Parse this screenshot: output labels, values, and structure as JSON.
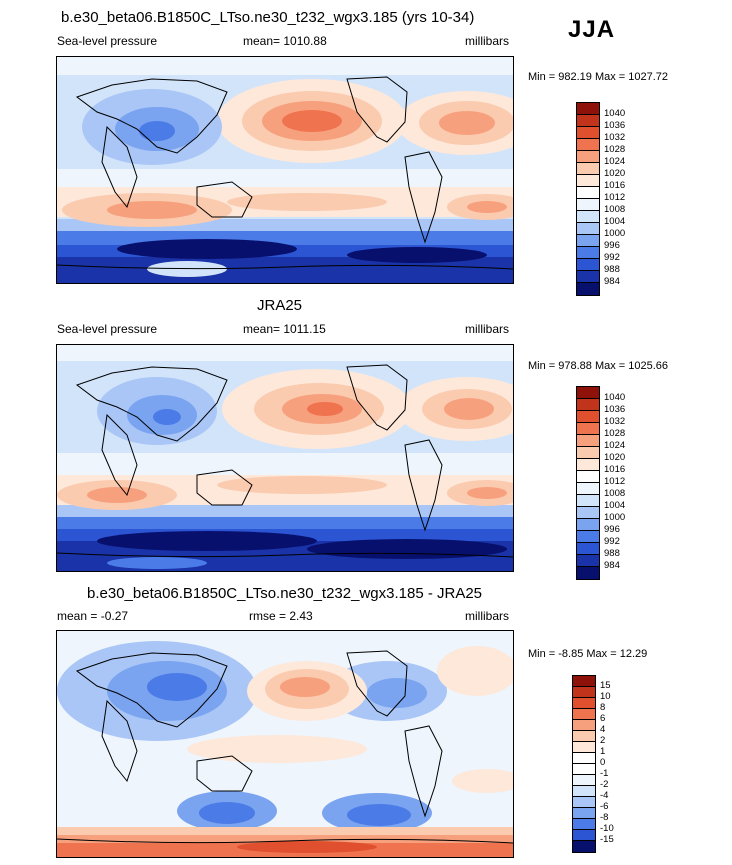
{
  "season": "JJA",
  "colors": {
    "slp": [
      "#08106e",
      "#1a33a8",
      "#2c55d4",
      "#4b7be6",
      "#7aa3f0",
      "#a9c6f6",
      "#d2e4fa",
      "#eef5fd",
      "#fde8da",
      "#fbcbb0",
      "#f7a07e",
      "#f0734f",
      "#e0502e",
      "#c2331c",
      "#8e1209"
    ],
    "diff": [
      "#08106e",
      "#1a33a8",
      "#2c55d4",
      "#4b7be6",
      "#7aa3f0",
      "#a9c6f6",
      "#d2e4fa",
      "#eef5fd",
      "#ffffff",
      "#fde8da",
      "#fbcbb0",
      "#f7a07e",
      "#f0734f",
      "#e0502e",
      "#c2331c",
      "#8e1209"
    ]
  },
  "chart_data": [
    {
      "type": "heatmap",
      "title": "b.e30_beta06.B1850C_LTso.ne30_t232_wgx3.185 (yrs 10-34)",
      "left_label": "Sea-level pressure",
      "center_label": "mean= 1010.88",
      "right_label": "millibars",
      "minmax": "Min = 982.19 Max = 1027.72",
      "mean": 1010.88,
      "min": 982.19,
      "max": 1027.72,
      "colorbar_labels": [
        "1040",
        "1036",
        "1032",
        "1028",
        "1024",
        "1020",
        "1016",
        "1012",
        "1008",
        "1004",
        "1000",
        "996",
        "992",
        "988",
        "984"
      ]
    },
    {
      "type": "heatmap",
      "title": "JRA25",
      "left_label": "Sea-level pressure",
      "center_label": "mean= 1011.15",
      "right_label": "millibars",
      "minmax": "Min = 978.88 Max = 1025.66",
      "mean": 1011.15,
      "min": 978.88,
      "max": 1025.66,
      "colorbar_labels": [
        "1040",
        "1036",
        "1032",
        "1028",
        "1024",
        "1020",
        "1016",
        "1012",
        "1008",
        "1004",
        "1000",
        "996",
        "992",
        "988",
        "984"
      ]
    },
    {
      "type": "heatmap",
      "title": "b.e30_beta06.B1850C_LTso.ne30_t232_wgx3.185 - JRA25",
      "left_label": "mean =  -0.27",
      "center_label": "rmse =   2.43",
      "right_label": "millibars",
      "minmax": "Min =  -8.85 Max =  12.29",
      "mean": -0.27,
      "rmse": 2.43,
      "min": -8.85,
      "max": 12.29,
      "colorbar_labels": [
        "15",
        "10",
        "8",
        "6",
        "4",
        "2",
        "1",
        "0",
        "-1",
        "-2",
        "-4",
        "-6",
        "-8",
        "-10",
        "-15"
      ]
    }
  ]
}
